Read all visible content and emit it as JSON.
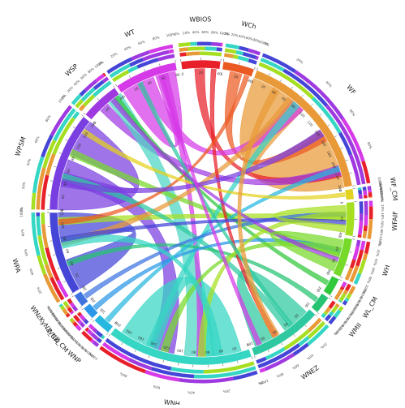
{
  "diagram": {
    "background": "#ffffff",
    "segments": [
      {
        "id": "WBIOS",
        "label": "WBIOS",
        "color": "#e8202a",
        "start": -8,
        "end": 7,
        "ticks": [
          "0",
          "20",
          "40"
        ]
      },
      {
        "id": "WCh",
        "label": "WCh",
        "color": "#eb5a22",
        "start": 8,
        "end": 20,
        "ticks": [
          "0",
          "20",
          "40"
        ]
      },
      {
        "id": "WF",
        "label": "WF",
        "color": "#e99a38",
        "start": 21,
        "end": 80,
        "ticks": [
          "0",
          "20",
          "40",
          "60",
          "80",
          "100",
          "120",
          "140",
          "160",
          "180",
          "200",
          "220",
          "240"
        ]
      },
      {
        "id": "WF_CM",
        "label": "WF_CM",
        "color": "#e3d21f",
        "start": 81,
        "end": 85,
        "ticks": [
          "0"
        ]
      },
      {
        "id": "WFAIF",
        "label": "WFAIF",
        "color": "#a6df21",
        "start": 86,
        "end": 99,
        "ticks": [
          "0",
          "20",
          "40"
        ]
      },
      {
        "id": "WH",
        "label": "WH",
        "color": "#77d92a",
        "start": 100,
        "end": 115,
        "ticks": [
          "0",
          "20",
          "40",
          "60"
        ]
      },
      {
        "id": "WL_CM",
        "label": "WL_CM",
        "color": "#31c83c",
        "start": 116,
        "end": 123,
        "ticks": [
          "0",
          "20"
        ]
      },
      {
        "id": "WMI",
        "label": "WMII",
        "color": "#26c472",
        "start": 124,
        "end": 131,
        "ticks": [
          "0",
          "20"
        ]
      },
      {
        "id": "WNEZ",
        "label": "WNEZ",
        "color": "#2ec9a0",
        "start": 132,
        "end": 160,
        "ticks": [
          "0",
          "20",
          "40",
          "60",
          "80",
          "100"
        ]
      },
      {
        "id": "WNH",
        "label": "WNH",
        "color": "#35d6c4",
        "start": 161,
        "end": 217,
        "ticks": [
          "0",
          "20",
          "40",
          "60",
          "80",
          "100",
          "120",
          "140",
          "160",
          "180",
          "200"
        ]
      },
      {
        "id": "WNP",
        "label": "WNP",
        "color": "#27b8df",
        "start": 218,
        "end": 225,
        "ticks": [
          "0",
          "20"
        ]
      },
      {
        "id": "WNZ_CM",
        "label": "WNZ_CM",
        "color": "#2a97e8",
        "start": 226,
        "end": 231,
        "ticks": [
          "0",
          "20"
        ]
      },
      {
        "id": "WNZ",
        "label": "WNzKyNZ_CM",
        "color": "#3f74e0",
        "start": 232,
        "end": 237,
        "ticks": [
          "0",
          "20"
        ]
      },
      {
        "id": "WPA",
        "label": "WPA",
        "color": "#4545d8",
        "start": 238,
        "end": 270,
        "ticks": [
          "0",
          "20",
          "40",
          "60",
          "80",
          "100",
          "120"
        ]
      },
      {
        "id": "WPSM",
        "label": "WPSM",
        "color": "#7a3fe0",
        "start": 271,
        "end": 309,
        "ticks": [
          "0",
          "20",
          "40",
          "60",
          "80",
          "100",
          "120",
          "140"
        ]
      },
      {
        "id": "WSP",
        "label": "WSP",
        "color": "#9f3ae0",
        "start": 310,
        "end": 325,
        "ticks": [
          "0",
          "20",
          "40"
        ]
      },
      {
        "id": "WT",
        "label": "WT",
        "color": "#d63ae8",
        "start": 326,
        "end": 350,
        "ticks": [
          "0",
          "20",
          "40",
          "60",
          "80"
        ]
      }
    ],
    "percent_ticks": [
      "0%",
      "20%",
      "40%",
      "60%",
      "80%",
      "100%"
    ],
    "stack_colors": [
      "#e8202a",
      "#e99a38",
      "#a6df21",
      "#35d6c4",
      "#4545d8",
      "#9f3ae0",
      "#d63ae8"
    ],
    "links": [
      {
        "from": "WF",
        "to": "WF",
        "color": "#e99a38",
        "w": 24
      },
      {
        "from": "WBIOS",
        "to": "WF",
        "color": "#e8202a",
        "w": 4
      },
      {
        "from": "WCh",
        "to": "WF",
        "color": "#eb5a22",
        "w": 5
      },
      {
        "from": "WT",
        "to": "WF",
        "color": "#d63ae8",
        "w": 6
      },
      {
        "from": "WSP",
        "to": "WF",
        "color": "#9f3ae0",
        "w": 4
      },
      {
        "from": "WPSM",
        "to": "WPSM",
        "color": "#7a3fe0",
        "w": 22
      },
      {
        "from": "WPA",
        "to": "WPA",
        "color": "#4545d8",
        "w": 18
      },
      {
        "from": "WPSM",
        "to": "WNH",
        "color": "#7a3fe0",
        "w": 10
      },
      {
        "from": "WSP",
        "to": "WNH",
        "color": "#4bd6c4",
        "w": 12
      },
      {
        "from": "WNH",
        "to": "WNH",
        "color": "#35d6c4",
        "w": 16
      },
      {
        "from": "WNEZ",
        "to": "WNEZ",
        "color": "#2ec9a0",
        "w": 8
      },
      {
        "from": "WT",
        "to": "WT",
        "color": "#d63ae8",
        "w": 8
      },
      {
        "from": "WT",
        "to": "WNH",
        "color": "#d63ae8",
        "w": 3
      },
      {
        "from": "WH",
        "to": "WPSM",
        "color": "#77d92a",
        "w": 3
      },
      {
        "from": "WFAIF",
        "to": "WPA",
        "color": "#a6df21",
        "w": 3
      },
      {
        "from": "WF",
        "to": "WPA",
        "color": "#e99a38",
        "w": 3
      },
      {
        "from": "WNEZ",
        "to": "WPSM",
        "color": "#2ec9a0",
        "w": 3
      },
      {
        "from": "WNH",
        "to": "WF",
        "color": "#35d6c4",
        "w": 3
      },
      {
        "from": "WL_CM",
        "to": "WSP",
        "color": "#31c83c",
        "w": 2
      },
      {
        "from": "WMI",
        "to": "WPA",
        "color": "#26c472",
        "w": 2
      },
      {
        "from": "WNP",
        "to": "WF",
        "color": "#27b8df",
        "w": 2
      },
      {
        "from": "WNZ_CM",
        "to": "WH",
        "color": "#2a97e8",
        "w": 2
      },
      {
        "from": "WNZ",
        "to": "WFAIF",
        "color": "#3f74e0",
        "w": 2
      },
      {
        "from": "WBIOS",
        "to": "WNEZ",
        "color": "#e8202a",
        "w": 2
      },
      {
        "from": "WCh",
        "to": "WPA",
        "color": "#eb5a22",
        "w": 2
      },
      {
        "from": "WF_CM",
        "to": "WPSM",
        "color": "#e3d21f",
        "w": 2
      },
      {
        "from": "WH",
        "to": "WNH",
        "color": "#77d92a",
        "w": 3
      },
      {
        "from": "WFAIF",
        "to": "WNH",
        "color": "#a6df21",
        "w": 3
      },
      {
        "from": "WNH",
        "to": "WPA",
        "color": "#35d6c4",
        "w": 4
      },
      {
        "from": "WNEZ",
        "to": "WT",
        "color": "#2ec9a0",
        "w": 2
      },
      {
        "from": "WPSM",
        "to": "WF",
        "color": "#7a3fe0",
        "w": 3
      },
      {
        "from": "WSP",
        "to": "WH",
        "color": "#9f3ae0",
        "w": 2
      },
      {
        "from": "WT",
        "to": "WNEZ",
        "color": "#d63ae8",
        "w": 2
      },
      {
        "from": "WPA",
        "to": "WFAIF",
        "color": "#4545d8",
        "w": 2
      },
      {
        "from": "WF",
        "to": "WNEZ",
        "color": "#e99a38",
        "w": 3
      },
      {
        "from": "WH",
        "to": "WH",
        "color": "#77d92a",
        "w": 4
      },
      {
        "from": "WFAIF",
        "to": "WFAIF",
        "color": "#a6df21",
        "w": 3
      }
    ]
  }
}
